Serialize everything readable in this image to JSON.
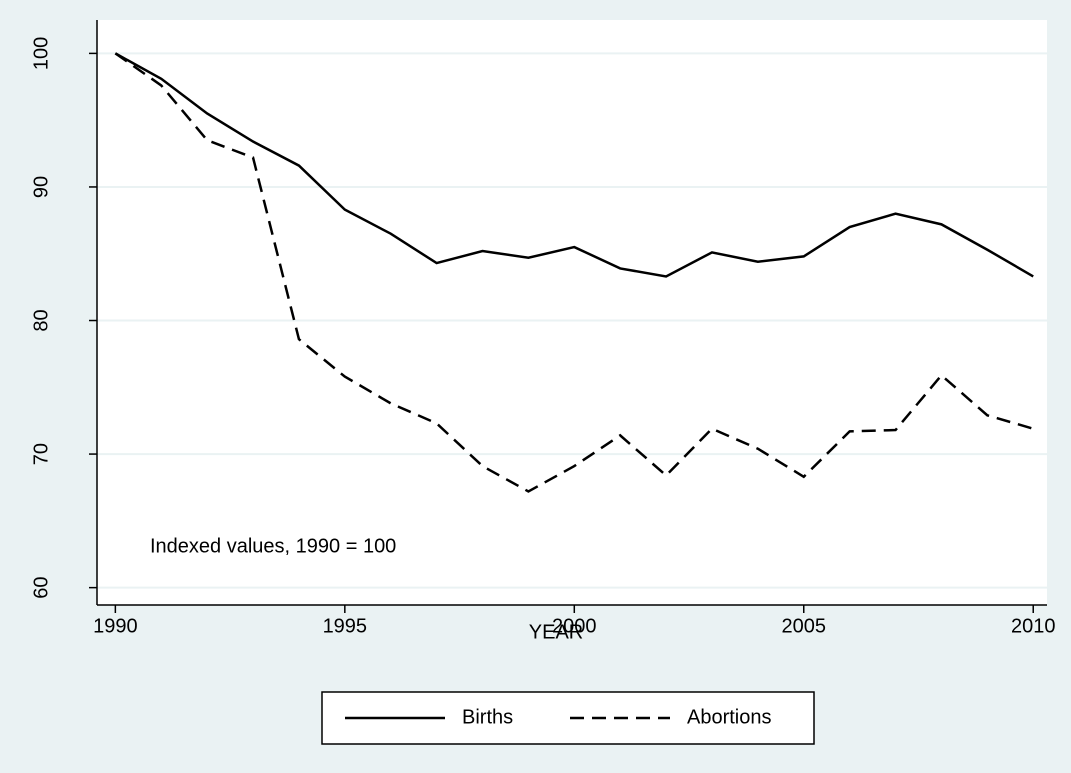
{
  "chart_data": {
    "type": "line",
    "x": [
      1990,
      1991,
      1992,
      1993,
      1994,
      1995,
      1996,
      1997,
      1998,
      1999,
      2000,
      2001,
      2002,
      2003,
      2004,
      2005,
      2006,
      2007,
      2008,
      2009,
      2010
    ],
    "series": [
      {
        "name": "Births",
        "color": "#000000",
        "style": "solid",
        "values": [
          100,
          98.1,
          95.5,
          93.4,
          91.6,
          88.3,
          86.5,
          84.3,
          85.2,
          84.7,
          85.5,
          83.9,
          83.3,
          85.1,
          84.4,
          84.8,
          87.0,
          88.0,
          87.2,
          85.3,
          83.3
        ]
      },
      {
        "name": "Abortions",
        "color": "#000000",
        "style": "dash",
        "values": [
          100,
          97.6,
          93.5,
          92.2,
          78.6,
          75.8,
          73.8,
          72.3,
          69.1,
          67.2,
          69.1,
          71.4,
          68.4,
          71.9,
          70.4,
          68.3,
          71.7,
          71.8,
          75.9,
          72.9,
          71.9
        ]
      }
    ],
    "xlabel": "YEAR",
    "annotation": "Indexed values, 1990 = 100",
    "xlim": [
      1989.6,
      2010.3
    ],
    "xticks": [
      1990,
      1995,
      2000,
      2005,
      2010
    ],
    "ylim": [
      58.7,
      102.5
    ],
    "yticks": [
      60,
      70,
      80,
      90,
      100
    ],
    "grid": true,
    "legend": "bottom"
  }
}
